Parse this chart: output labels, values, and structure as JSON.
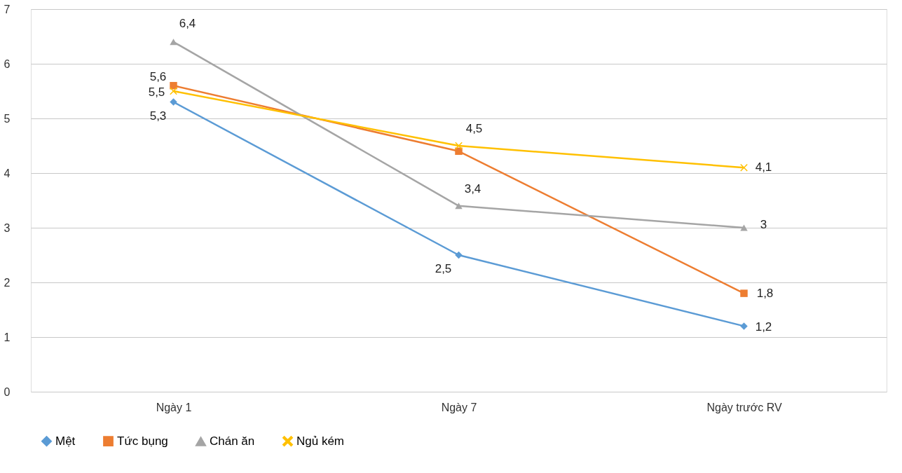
{
  "chart_data": {
    "type": "line",
    "categories": [
      "Ngày 1",
      "Ngày 7",
      "Ngày trước RV"
    ],
    "series": [
      {
        "name": "Mệt",
        "color": "#5b9bd5",
        "marker": "diamond",
        "values": [
          5.3,
          2.5,
          1.2
        ],
        "value_labels": [
          "5,3",
          "2,5",
          "1,2"
        ]
      },
      {
        "name": "Tức bụng",
        "color": "#ed7d31",
        "marker": "square",
        "values": [
          5.6,
          4.4,
          1.8
        ],
        "value_labels": [
          "5,6",
          null,
          "1,8"
        ]
      },
      {
        "name": "Chán ăn",
        "color": "#a5a5a5",
        "marker": "triangle",
        "values": [
          6.4,
          3.4,
          3
        ],
        "value_labels": [
          "6,4",
          "3,4",
          "3"
        ]
      },
      {
        "name": "Ngủ kém",
        "color": "#ffc000",
        "marker": "cross",
        "values": [
          5.5,
          4.5,
          4.1
        ],
        "value_labels": [
          "5,5",
          "4,5",
          "4,1"
        ]
      }
    ],
    "ylim": [
      0,
      7
    ],
    "yticks": [
      0,
      1,
      2,
      3,
      4,
      5,
      6,
      7
    ],
    "grid": "y",
    "legend": "bottom",
    "line_style": "solid"
  }
}
